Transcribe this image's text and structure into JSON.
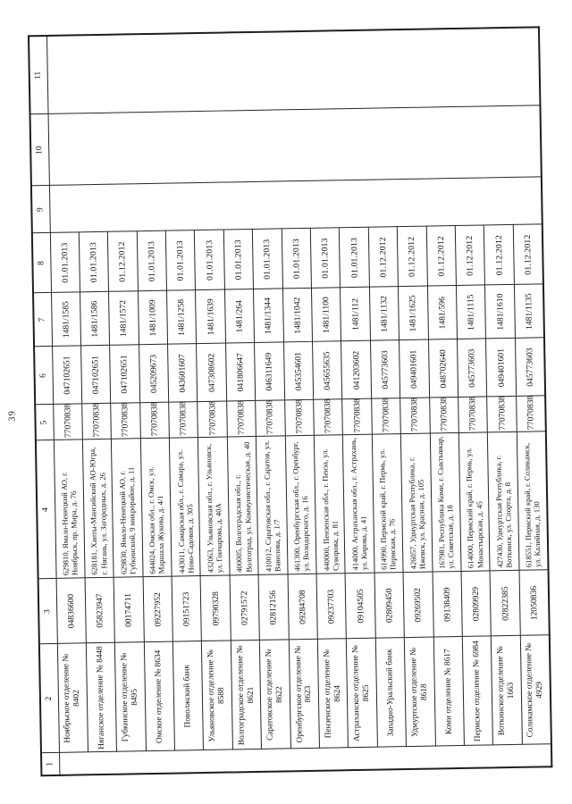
{
  "page_number": "39",
  "table": {
    "headers": [
      "1",
      "2",
      "3",
      "4",
      "5",
      "6",
      "7",
      "8",
      "9",
      "10",
      "11"
    ],
    "rows": [
      {
        "col2": "Ноябрьское отделение № 8402",
        "col3": "04836600",
        "col4": "629810, Ямало-Ненецкий АО, г. Ноябрьск, пр. Мира, д. 76",
        "col5": "7707083893",
        "col6": "047102651",
        "col7": "1481/1585",
        "col8": "01.01.2013"
      },
      {
        "col2": "Няганское отделение № 8448",
        "col3": "05823947",
        "col4": "628181, Ханты-Мансийский АО-Югра, г. Нягань, ул. Загородных, д. 26",
        "col5": "7707083893",
        "col6": "047102651",
        "col7": "1481/1586",
        "col8": "01.01.2013"
      },
      {
        "col2": "Губкинское отделение № 8495",
        "col3": "00174711",
        "col4": "629830, Ямало-Ненецкий АО, г. Губкинский, 9 микрорайон, д. 11",
        "col5": "7707083893",
        "col6": "047102651",
        "col7": "1481/1572",
        "col8": "01.12.2012"
      },
      {
        "col2": "Омское отделение № 8634",
        "col3": "09227952",
        "col4": "644024, Омская обл., г. Омск, ул. Маршала Жукова, д. 4/1",
        "col5": "7707083893",
        "col6": "045209673",
        "col7": "1481/1009",
        "col8": "01.01.2013"
      },
      {
        "col2": "Поволжский банк",
        "col3": "09151723",
        "col4": "443011, Самарская обл., г. Самара, ул. Ново-Садовая, д. 305",
        "col5": "7707083893",
        "col6": "043601607",
        "col7": "1481/1258",
        "col8": "01.01.2013"
      },
      {
        "col2": "Ульяновское отделение № 8588",
        "col3": "09790328",
        "col4": "432063, Ульяновская обл., г. Ульяновск, ул. Гончарова, д. 40А",
        "col5": "7707083893",
        "col6": "047308602",
        "col7": "1481/1639",
        "col8": "01.01.2013"
      },
      {
        "col2": "Волгоградское отделение № 8621",
        "col3": "02791572",
        "col4": "400005, Волгоградская обл., г. Волгоград, ул. Коммунистическая, д. 40",
        "col5": "7707083893",
        "col6": "041806647",
        "col7": "1481/264",
        "col8": "01.01.2013"
      },
      {
        "col2": "Саратовское отделение № 8622",
        "col3": "02812156",
        "col4": "410012, Саратовская обл., г. Саратов, ул. Вавилова, д. 1/7",
        "col5": "7707083893",
        "col6": "046311649",
        "col7": "1481/1344",
        "col8": "01.01.2013"
      },
      {
        "col2": "Оренбургское отделение № 8623",
        "col3": "09284708",
        "col4": "461300, Оренбургская обл., г. Оренбург, ул. Володарского, д. 16",
        "col5": "7707083893",
        "col6": "045354601",
        "col7": "1481/1042",
        "col8": "01.01.2013"
      },
      {
        "col2": "Пензенское отделение № 8624",
        "col3": "09237703",
        "col4": "440000, Пензенская обл., г. Пенза, ул. Суворова, д. 81",
        "col5": "7707083893",
        "col6": "045655635",
        "col7": "1481/1100",
        "col8": "01.01.2013"
      },
      {
        "col2": "Астраханское отделение № 8625",
        "col3": "09104505",
        "col4": "414000, Астраханская обл., г. Астрахань, ул. Кирова, д. 41",
        "col5": "7707083893",
        "col6": "041203602",
        "col7": "1481/112",
        "col8": "01.01.2013"
      },
      {
        "col2": "Западно-Уральский банк",
        "col3": "02809450",
        "col4": "614990, Пермский край, г. Пермь, ул. Пермская, д. 76",
        "col5": "7707083893",
        "col6": "045773603",
        "col7": "1481/1132",
        "col8": "01.12.2012"
      },
      {
        "col2": "Удмуртское отделение № 8618",
        "col3": "09269502",
        "col4": "426057, Удмуртская Республика, г. Ижевск, ул. Красная, д. 105",
        "col5": "7707083893",
        "col6": "049401601",
        "col7": "1481/1625",
        "col8": "01.12.2012"
      },
      {
        "col2": "Коми отделение № 8617",
        "col3": "09138409",
        "col4": "167981, Республика Коми, г. Сыктывкар, ул. Советская, д. 18",
        "col5": "7707083893",
        "col6": "048702640",
        "col7": "1481/596",
        "col8": "01.12.2012"
      },
      {
        "col2": "Пермское отделение № 6984",
        "col3": "02809929",
        "col4": "614000, Пермский край, г. Пермь, ул. Монастырская, д. 45",
        "col5": "7707083893",
        "col6": "045773603",
        "col7": "1481/1115",
        "col8": "01.12.2012"
      },
      {
        "col2": "Воткинское отделение № 1663",
        "col3": "02822385",
        "col4": "427430, Удмуртская Республика, г. Воткинск, ул. Спорта, д. 8",
        "col5": "7707083893",
        "col6": "049401601",
        "col7": "1481/1610",
        "col8": "01.12.2012"
      },
      {
        "col2": "Соликамское отделение № 4929",
        "col3": "12050836",
        "col4": "618551, Пермский край, г. Соликамск, ул. Калийная, д. 130",
        "col5": "7707083893",
        "col6": "045773603",
        "col7": "1481/1135",
        "col8": "01.12.2012"
      }
    ]
  }
}
